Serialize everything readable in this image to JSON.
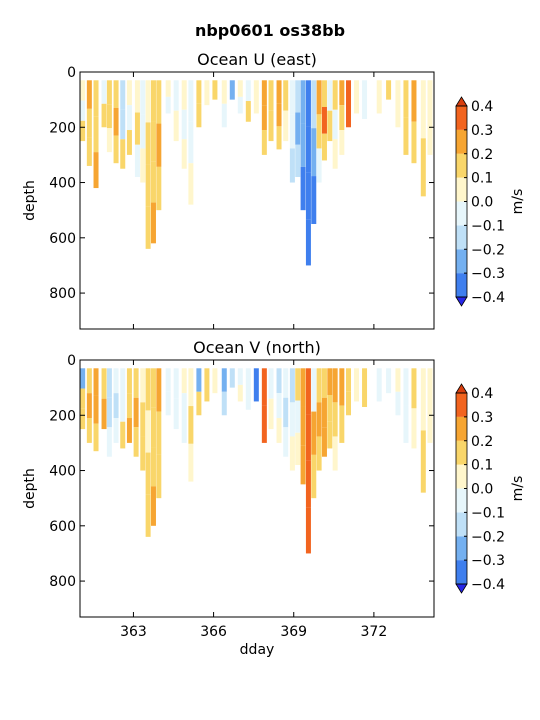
{
  "figure": {
    "suptitle": "nbp0601 os38bb"
  },
  "chart_data": [
    {
      "type": "heatmap",
      "title": "Ocean U (east)",
      "xlabel": "",
      "ylabel": "depth",
      "xlim": [
        361.0,
        374.25
      ],
      "ylim": [
        930,
        0
      ],
      "xticks": [
        363,
        366,
        369,
        372
      ],
      "yticks": [
        0,
        200,
        400,
        600,
        800
      ],
      "colorbar": {
        "label": "m/s",
        "levels": [
          -0.4,
          -0.3,
          -0.2,
          -0.1,
          0.0,
          0.1,
          0.2,
          0.3,
          0.4
        ],
        "colors": [
          "#2727e8",
          "#3f7fee",
          "#74b0f0",
          "#bfe0f7",
          "#e7f6fb",
          "#fff6cc",
          "#f9d66a",
          "#f6a532",
          "#f2641f",
          "#d83f0f"
        ]
      },
      "profiles": [
        {
          "t": 361.1,
          "bottom": 250,
          "v": [
            0.05,
            -0.05,
            0.1
          ]
        },
        {
          "t": 361.35,
          "bottom": 340,
          "v": [
            0.25,
            0.15,
            0.1
          ]
        },
        {
          "t": 361.6,
          "bottom": 420,
          "v": [
            0.15,
            0.1,
            0.2
          ]
        },
        {
          "t": 361.9,
          "bottom": 200,
          "v": [
            -0.05,
            0.1
          ]
        },
        {
          "t": 362.1,
          "bottom": 290,
          "v": [
            0.15,
            0.15,
            0.05
          ]
        },
        {
          "t": 362.35,
          "bottom": 330,
          "v": [
            0.1,
            0.2,
            0.15
          ]
        },
        {
          "t": 362.6,
          "bottom": 350,
          "v": [
            -0.15,
            -0.2,
            0.1
          ]
        },
        {
          "t": 362.85,
          "bottom": 300,
          "v": [
            0.05,
            -0.05,
            0.1
          ]
        },
        {
          "t": 363.15,
          "bottom": 380,
          "v": [
            0.05,
            0.1,
            -0.05
          ]
        },
        {
          "t": 363.35,
          "bottom": 400,
          "v": [
            -0.05,
            -0.1,
            0.05
          ]
        },
        {
          "t": 363.55,
          "bottom": 640,
          "v": [
            0.05,
            0.1,
            0.15,
            0.15
          ]
        },
        {
          "t": 363.75,
          "bottom": 620,
          "v": [
            0.1,
            0.15,
            0.15,
            0.2
          ]
        },
        {
          "t": 363.95,
          "bottom": 500,
          "v": [
            0.1,
            0.2,
            0.15
          ]
        },
        {
          "t": 364.3,
          "bottom": 150,
          "v": [
            0.05,
            -0.05
          ]
        },
        {
          "t": 364.6,
          "bottom": 250,
          "v": [
            -0.05,
            0.05
          ]
        },
        {
          "t": 364.9,
          "bottom": 350,
          "v": [
            0.05,
            -0.05,
            0.05
          ]
        },
        {
          "t": 365.15,
          "bottom": 480,
          "v": [
            -0.05,
            -0.1,
            0.05
          ]
        },
        {
          "t": 365.45,
          "bottom": 200,
          "v": [
            0.1,
            0.15
          ]
        },
        {
          "t": 365.75,
          "bottom": 120,
          "v": [
            0.05
          ]
        },
        {
          "t": 366.05,
          "bottom": 100,
          "v": [
            0.15
          ]
        },
        {
          "t": 366.4,
          "bottom": 200,
          "v": [
            0.05,
            -0.05
          ]
        },
        {
          "t": 366.7,
          "bottom": 100,
          "v": [
            -0.25
          ]
        },
        {
          "t": 367.0,
          "bottom": 150,
          "v": [
            0.05,
            -0.05
          ]
        },
        {
          "t": 367.3,
          "bottom": 180,
          "v": [
            -0.05,
            0.1
          ]
        },
        {
          "t": 367.6,
          "bottom": 150,
          "v": [
            0.05
          ]
        },
        {
          "t": 367.9,
          "bottom": 300,
          "v": [
            0.2,
            0.25,
            0.15
          ]
        },
        {
          "t": 368.15,
          "bottom": 250,
          "v": [
            0.15,
            0.1
          ]
        },
        {
          "t": 368.45,
          "bottom": 280,
          "v": [
            0.2,
            0.2,
            0.15
          ]
        },
        {
          "t": 368.7,
          "bottom": 250,
          "v": [
            0.15,
            0.05
          ]
        },
        {
          "t": 368.95,
          "bottom": 400,
          "v": [
            -0.05,
            -0.1,
            -0.2
          ]
        },
        {
          "t": 369.15,
          "bottom": 380,
          "v": [
            -0.15,
            -0.25,
            -0.2
          ]
        },
        {
          "t": 369.35,
          "bottom": 500,
          "v": [
            -0.25,
            -0.3,
            -0.35
          ]
        },
        {
          "t": 369.55,
          "bottom": 700,
          "v": [
            -0.35,
            -0.35,
            -0.4,
            -0.35
          ]
        },
        {
          "t": 369.75,
          "bottom": 550,
          "v": [
            -0.2,
            -0.3,
            -0.35
          ]
        },
        {
          "t": 369.95,
          "bottom": 400,
          "v": [
            0.25,
            0.1,
            -0.1
          ]
        },
        {
          "t": 370.15,
          "bottom": 320,
          "v": [
            0.15,
            0.3,
            0.1
          ]
        },
        {
          "t": 370.35,
          "bottom": 250,
          "v": [
            -0.05,
            0.1
          ]
        },
        {
          "t": 370.55,
          "bottom": 350,
          "v": [
            0.1,
            -0.05,
            0.05
          ]
        },
        {
          "t": 370.8,
          "bottom": 300,
          "v": [
            0.2,
            0.1,
            0.05
          ]
        },
        {
          "t": 371.05,
          "bottom": 200,
          "v": [
            0.3
          ]
        },
        {
          "t": 371.35,
          "bottom": 150,
          "v": [
            0.05
          ]
        },
        {
          "t": 371.65,
          "bottom": 170,
          "v": [
            -0.05
          ]
        },
        {
          "t": 372.2,
          "bottom": 150,
          "v": [
            0.05
          ]
        },
        {
          "t": 372.55,
          "bottom": 100,
          "v": [
            0.1
          ]
        },
        {
          "t": 372.9,
          "bottom": 200,
          "v": [
            0.05
          ]
        },
        {
          "t": 373.2,
          "bottom": 300,
          "v": [
            0.1,
            0.15
          ]
        },
        {
          "t": 373.5,
          "bottom": 330,
          "v": [
            0.2,
            0.15
          ]
        },
        {
          "t": 373.85,
          "bottom": 450,
          "v": [
            0.05,
            0.1
          ]
        },
        {
          "t": 374.1,
          "bottom": 300,
          "v": [
            0.05
          ]
        }
      ]
    },
    {
      "type": "heatmap",
      "title": "Ocean V (north)",
      "xlabel": "dday",
      "ylabel": "depth",
      "xlim": [
        361.0,
        374.25
      ],
      "ylim": [
        930,
        0
      ],
      "xticks": [
        363,
        366,
        369,
        372
      ],
      "yticks": [
        0,
        200,
        400,
        600,
        800
      ],
      "colorbar": {
        "label": "m/s",
        "levels": [
          -0.4,
          -0.3,
          -0.2,
          -0.1,
          0.0,
          0.1,
          0.2,
          0.3,
          0.4
        ],
        "colors": [
          "#2727e8",
          "#3f7fee",
          "#74b0f0",
          "#bfe0f7",
          "#e7f6fb",
          "#fff6cc",
          "#f9d66a",
          "#f6a532",
          "#f2641f",
          "#d83f0f"
        ]
      },
      "profiles": [
        {
          "t": 361.1,
          "bottom": 250,
          "v": [
            -0.3,
            0.1,
            0.15
          ]
        },
        {
          "t": 361.35,
          "bottom": 300,
          "v": [
            0.15,
            0.2,
            0.15
          ]
        },
        {
          "t": 361.6,
          "bottom": 330,
          "v": [
            0.2,
            0.25,
            0.15
          ]
        },
        {
          "t": 361.9,
          "bottom": 250,
          "v": [
            0.1,
            0.2
          ]
        },
        {
          "t": 362.1,
          "bottom": 350,
          "v": [
            -0.15,
            -0.2,
            -0.1
          ]
        },
        {
          "t": 362.35,
          "bottom": 300,
          "v": [
            -0.05,
            -0.15,
            -0.1
          ]
        },
        {
          "t": 362.6,
          "bottom": 320,
          "v": [
            -0.1,
            -0.05,
            0.1
          ]
        },
        {
          "t": 362.85,
          "bottom": 300,
          "v": [
            0.1,
            0.15,
            0.2
          ]
        },
        {
          "t": 363.1,
          "bottom": 350,
          "v": [
            0.15,
            0.2,
            0.15
          ]
        },
        {
          "t": 363.35,
          "bottom": 400,
          "v": [
            0.05,
            0.15,
            0.1
          ]
        },
        {
          "t": 363.55,
          "bottom": 640,
          "v": [
            0.1,
            0.05,
            0.1,
            0.15
          ]
        },
        {
          "t": 363.75,
          "bottom": 600,
          "v": [
            0.15,
            0.1,
            0.15,
            0.2
          ]
        },
        {
          "t": 363.95,
          "bottom": 500,
          "v": [
            0.2,
            0.15,
            0.1
          ]
        },
        {
          "t": 364.3,
          "bottom": 200,
          "v": [
            -0.05,
            -0.1
          ]
        },
        {
          "t": 364.6,
          "bottom": 250,
          "v": [
            -0.1,
            -0.05
          ]
        },
        {
          "t": 364.9,
          "bottom": 300,
          "v": [
            0.05,
            -0.05,
            -0.1
          ]
        },
        {
          "t": 365.15,
          "bottom": 440,
          "v": [
            0.05,
            0.1,
            0.05
          ]
        },
        {
          "t": 365.45,
          "bottom": 200,
          "v": [
            -0.25,
            0.1
          ]
        },
        {
          "t": 365.75,
          "bottom": 150,
          "v": [
            0.15
          ]
        },
        {
          "t": 366.05,
          "bottom": 120,
          "v": [
            0.05
          ]
        },
        {
          "t": 366.4,
          "bottom": 200,
          "v": [
            -0.3,
            -0.15
          ]
        },
        {
          "t": 366.7,
          "bottom": 100,
          "v": [
            -0.2
          ]
        },
        {
          "t": 367.0,
          "bottom": 150,
          "v": [
            -0.05,
            0.05
          ]
        },
        {
          "t": 367.3,
          "bottom": 180,
          "v": [
            -0.1,
            -0.05
          ]
        },
        {
          "t": 367.6,
          "bottom": 150,
          "v": [
            -0.35
          ]
        },
        {
          "t": 367.9,
          "bottom": 300,
          "v": [
            0.35,
            0.3
          ]
        },
        {
          "t": 368.15,
          "bottom": 250,
          "v": [
            -0.1,
            0.05
          ]
        },
        {
          "t": 368.45,
          "bottom": 300,
          "v": [
            -0.15,
            -0.1,
            0.05
          ]
        },
        {
          "t": 368.7,
          "bottom": 350,
          "v": [
            -0.1,
            -0.2,
            -0.05
          ]
        },
        {
          "t": 368.95,
          "bottom": 400,
          "v": [
            -0.15,
            -0.1,
            0.05
          ]
        },
        {
          "t": 369.15,
          "bottom": 380,
          "v": [
            0.15,
            -0.1,
            0.05
          ]
        },
        {
          "t": 369.35,
          "bottom": 450,
          "v": [
            0.2,
            0.25,
            0.2
          ]
        },
        {
          "t": 369.55,
          "bottom": 700,
          "v": [
            0.3,
            0.3,
            0.35,
            0.3
          ]
        },
        {
          "t": 369.75,
          "bottom": 500,
          "v": [
            -0.1,
            0.2,
            0.1
          ]
        },
        {
          "t": 369.95,
          "bottom": 400,
          "v": [
            0.1,
            0.2,
            0.15
          ]
        },
        {
          "t": 370.15,
          "bottom": 350,
          "v": [
            0.15,
            0.25,
            0.2
          ]
        },
        {
          "t": 370.35,
          "bottom": 320,
          "v": [
            0.2,
            0.15,
            0.1
          ]
        },
        {
          "t": 370.55,
          "bottom": 400,
          "v": [
            0.2,
            0.15,
            0.05
          ]
        },
        {
          "t": 370.8,
          "bottom": 300,
          "v": [
            0.2,
            0.15
          ]
        },
        {
          "t": 371.05,
          "bottom": 200,
          "v": [
            0.15,
            0.1
          ]
        },
        {
          "t": 371.35,
          "bottom": 150,
          "v": [
            0.05
          ]
        },
        {
          "t": 371.65,
          "bottom": 170,
          "v": [
            0.1
          ]
        },
        {
          "t": 372.2,
          "bottom": 150,
          "v": [
            -0.05
          ]
        },
        {
          "t": 372.55,
          "bottom": 120,
          "v": [
            -0.1
          ]
        },
        {
          "t": 372.9,
          "bottom": 200,
          "v": [
            0.05,
            -0.05
          ]
        },
        {
          "t": 373.2,
          "bottom": 300,
          "v": [
            -0.1,
            -0.05
          ]
        },
        {
          "t": 373.5,
          "bottom": 320,
          "v": [
            0.1,
            0.05
          ]
        },
        {
          "t": 373.85,
          "bottom": 480,
          "v": [
            0.05,
            0.15
          ]
        },
        {
          "t": 374.1,
          "bottom": 300,
          "v": [
            0.05
          ]
        }
      ]
    }
  ]
}
